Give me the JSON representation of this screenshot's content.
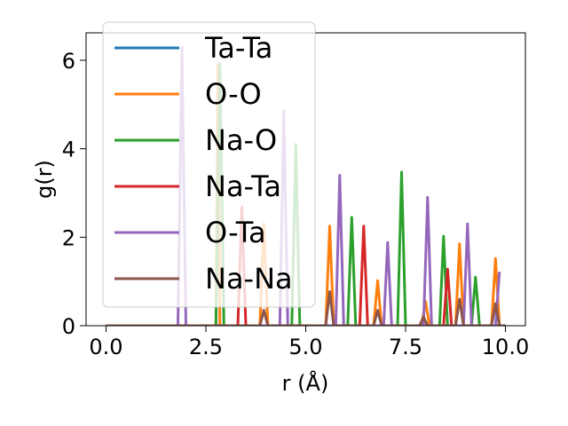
{
  "chart_data": {
    "type": "line",
    "title": "",
    "xlabel": "r (Å)",
    "ylabel": "g(r)",
    "xlim": [
      -0.5,
      10.5
    ],
    "ylim": [
      0,
      6.62
    ],
    "xticks": [
      0.0,
      2.5,
      5.0,
      7.5,
      10.0
    ],
    "xtick_labels": [
      "0.0",
      "2.5",
      "5.0",
      "7.5",
      "10.0"
    ],
    "yticks": [
      0,
      2,
      4,
      6
    ],
    "ytick_labels": [
      "0",
      "2",
      "4",
      "6"
    ],
    "grid": false,
    "legend_position": "upper-left",
    "series": [
      {
        "name": "Ta-Ta",
        "color": "#1f77b4",
        "x": [
          0.0,
          10.0
        ],
        "y": [
          0.0,
          0.0
        ]
      },
      {
        "name": "O-O",
        "color": "#ff7f0e",
        "x": [
          0.0,
          2.75,
          2.8,
          2.85,
          3.85,
          3.95,
          4.05,
          5.5,
          5.6,
          5.7,
          6.7,
          6.8,
          6.9,
          7.9,
          8.0,
          8.1,
          8.75,
          8.85,
          8.95,
          9.65,
          9.75,
          9.85,
          10.0
        ],
        "y": [
          0.0,
          0.0,
          5.9,
          0.0,
          0.0,
          2.3,
          0.0,
          0.0,
          2.25,
          0.0,
          0.0,
          1.02,
          0.0,
          0.0,
          0.55,
          0.0,
          0.0,
          1.85,
          0.0,
          0.0,
          1.52,
          0.0,
          0.0
        ]
      },
      {
        "name": "Na-O",
        "color": "#2ca02c",
        "x": [
          0.0,
          2.75,
          2.85,
          2.95,
          4.65,
          4.75,
          4.85,
          6.05,
          6.15,
          6.25,
          7.3,
          7.4,
          7.5,
          8.35,
          8.45,
          8.55,
          9.15,
          9.25,
          9.35,
          10.0
        ],
        "y": [
          0.0,
          0.0,
          5.92,
          0.0,
          0.0,
          4.1,
          0.0,
          0.0,
          2.45,
          0.0,
          0.0,
          3.47,
          0.0,
          0.0,
          2.02,
          0.0,
          0.0,
          1.1,
          0.0,
          0.0
        ]
      },
      {
        "name": "Na-Ta",
        "color": "#d62728",
        "x": [
          0.0,
          3.3,
          3.4,
          3.5,
          6.35,
          6.45,
          6.55,
          8.45,
          8.55,
          8.65,
          10.0
        ],
        "y": [
          0.0,
          0.0,
          2.68,
          0.0,
          0.0,
          2.25,
          0.0,
          0.0,
          1.28,
          0.0,
          0.0
        ]
      },
      {
        "name": "O-Ta",
        "color": "#9467bd",
        "x": [
          0.0,
          1.8,
          1.9,
          2.0,
          4.35,
          4.45,
          4.55,
          5.75,
          5.85,
          5.95,
          6.95,
          7.05,
          7.15,
          7.95,
          8.05,
          8.15,
          8.95,
          9.05,
          9.15,
          9.75,
          9.85
        ],
        "y": [
          0.0,
          0.0,
          6.3,
          0.0,
          0.0,
          4.85,
          0.0,
          0.0,
          3.4,
          0.0,
          0.0,
          1.88,
          0.0,
          0.0,
          2.9,
          0.0,
          0.0,
          2.3,
          0.0,
          0.0,
          1.22
        ]
      },
      {
        "name": "Na-Na",
        "color": "#8c564b",
        "x": [
          0.0,
          3.85,
          3.95,
          4.05,
          5.5,
          5.6,
          5.7,
          6.7,
          6.8,
          6.9,
          7.85,
          7.95,
          8.05,
          8.75,
          8.85,
          8.95,
          9.65,
          9.75,
          9.85,
          10.0
        ],
        "y": [
          0.0,
          0.0,
          0.35,
          0.0,
          0.0,
          0.77,
          0.0,
          0.0,
          0.35,
          0.0,
          0.0,
          0.2,
          0.0,
          0.0,
          0.6,
          0.0,
          0.0,
          0.5,
          0.0,
          0.0
        ]
      }
    ]
  }
}
